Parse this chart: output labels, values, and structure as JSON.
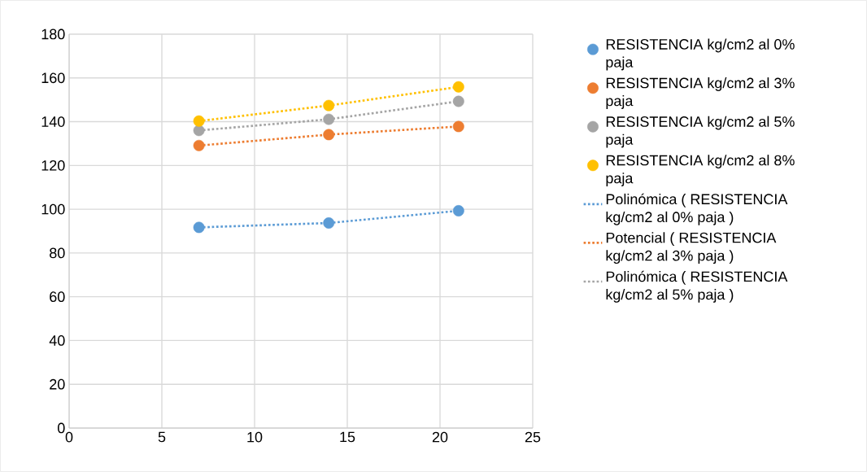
{
  "chart_data": {
    "type": "scatter",
    "xlim": [
      0,
      25
    ],
    "xticks": [
      0,
      5,
      10,
      15,
      20,
      25
    ],
    "ylim": [
      0,
      180
    ],
    "yticks": [
      0,
      20,
      40,
      60,
      80,
      100,
      120,
      140,
      160,
      180
    ],
    "grid": true,
    "legend": "right",
    "series": [
      {
        "name": " RESISTENCIA kg/cm2 al 0% paja",
        "type": "scatter",
        "marker": "circle",
        "color": "#5b9bd5",
        "x": [
          7,
          14,
          21
        ],
        "values": [
          91.7,
          93.7,
          99.3
        ]
      },
      {
        "name": " RESISTENCIA kg/cm2 al 3% paja",
        "type": "scatter",
        "marker": "circle",
        "color": "#ed7d31",
        "x": [
          7,
          14,
          21
        ],
        "values": [
          129.1,
          134.1,
          137.8
        ]
      },
      {
        "name": " RESISTENCIA kg/cm2 al 5% paja",
        "type": "scatter",
        "marker": "circle",
        "color": "#a5a5a5",
        "x": [
          7,
          14,
          21
        ],
        "values": [
          136,
          141.1,
          149.3
        ]
      },
      {
        "name": " RESISTENCIA kg/cm2 al 8% paja",
        "type": "scatter",
        "marker": "circle",
        "color": "#ffc000",
        "x": [
          7,
          14,
          21
        ],
        "values": [
          140.3,
          147.4,
          155.9
        ]
      },
      {
        "name": "Polinómica ( RESISTENCIA kg/cm2 al 0% paja )",
        "type": "line",
        "line_style": "dotted",
        "marker": "none",
        "color": "#5b9bd5",
        "x": [
          7,
          14,
          21
        ],
        "values": [
          91.7,
          93.7,
          99.3
        ]
      },
      {
        "name": "Potencial ( RESISTENCIA kg/cm2 al 3% paja )",
        "type": "line",
        "line_style": "dotted",
        "marker": "none",
        "color": "#ed7d31",
        "x": [
          7,
          14,
          21
        ],
        "values": [
          129.1,
          134.1,
          137.8
        ]
      },
      {
        "name": "Polinómica ( RESISTENCIA kg/cm2 al 5% paja )",
        "type": "line",
        "line_style": "dotted",
        "marker": "none",
        "color": "#a5a5a5",
        "x": [
          7,
          14,
          21
        ],
        "values": [
          136,
          141.1,
          149.3
        ]
      },
      {
        "type": "line",
        "line_style": "dotted",
        "marker": "none",
        "color": "#ffc000",
        "x": [
          7,
          14,
          21
        ],
        "values": [
          140.3,
          147.4,
          155.9
        ]
      }
    ]
  }
}
